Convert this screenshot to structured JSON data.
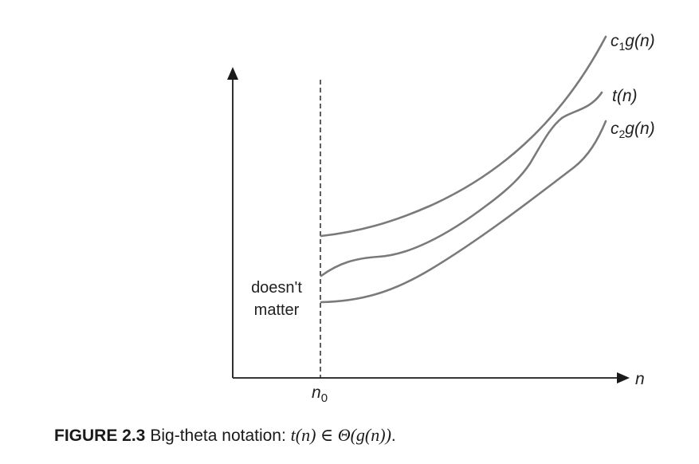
{
  "diagram": {
    "curves": [
      {
        "id": "upper",
        "label_main": "c",
        "label_sub": "1",
        "label_tail": "g(n)"
      },
      {
        "id": "middle",
        "label_main": "t(n)"
      },
      {
        "id": "lower",
        "label_main": "c",
        "label_sub": "2",
        "label_tail": "g(n)"
      }
    ],
    "x_axis_label": "n",
    "threshold_label_main": "n",
    "threshold_label_sub": "0",
    "region_note_line1": "doesn't",
    "region_note_line2": "matter",
    "colors": {
      "curve": "#7a7a7a",
      "axis": "#1a1a1a"
    }
  },
  "caption": {
    "figure_number": "FIGURE 2.3",
    "text": "Big-theta notation: ",
    "formula": "t(n) ∈ Θ(g(n))",
    "end": "."
  }
}
